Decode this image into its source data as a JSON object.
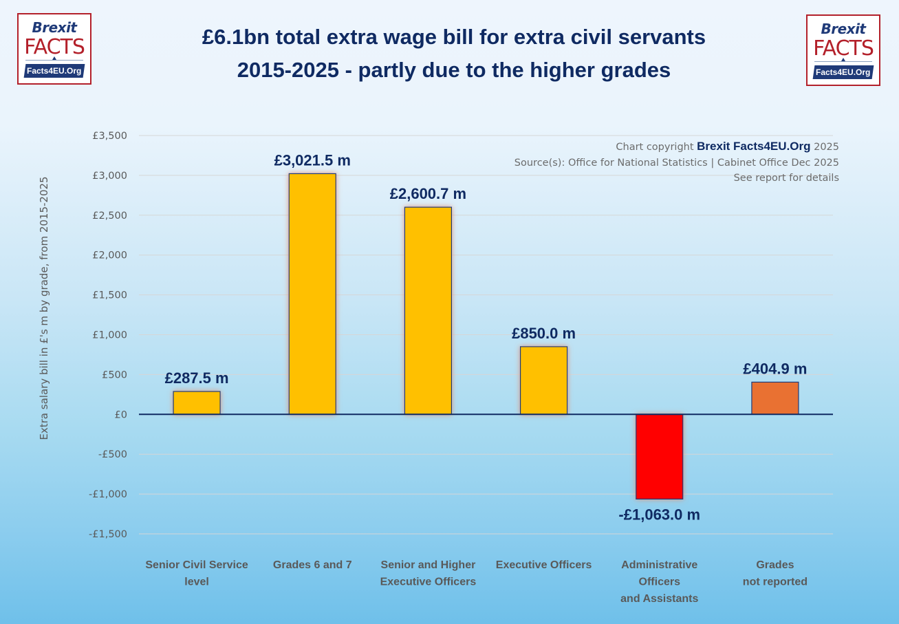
{
  "logo": {
    "brand": "Brexit",
    "word": "FACTS",
    "site": "Facts4EU.Org"
  },
  "title": {
    "line1": "£6.1bn total extra wage bill for extra civil servants",
    "line2": "2015-2025  - partly due to the higher grades"
  },
  "credits": {
    "copyright_prefix": "Chart copyright ",
    "copyright_brand": "Brexit Facts4EU.Org",
    "copyright_suffix": " 2025",
    "source": "Source(s): Office for National Statistics  |  Cabinet Office Dec 2025",
    "note": "See report for details"
  },
  "colors": {
    "title": "#0f2a62",
    "bar_default": "#ffc000",
    "bar_negative": "#ff0000",
    "bar_unreported": "#e97132",
    "bar_outline": "#1f3a78",
    "bar_glow": "#e58a6a",
    "zero_line": "#0f2a62",
    "gridline": "#d6d6d6",
    "tick_text": "#595959",
    "data_label": "#0f2a62"
  },
  "chart_data": {
    "type": "bar",
    "title": "£6.1bn total extra wage bill for extra civil servants 2015-2025 - partly due to the higher grades",
    "xlabel": "",
    "ylabel": "Extra salary bill in £'s m  by grade, from 2015-2025",
    "ylim": [
      -1500,
      3500
    ],
    "yticks": [
      3500,
      3000,
      2500,
      2000,
      1500,
      1000,
      500,
      0,
      -500,
      -1000,
      -1500
    ],
    "ytick_labels": [
      "£3,500",
      "£3,000",
      "£2,500",
      "£2,000",
      "£1,500",
      "£1,000",
      "£500",
      "£0",
      "-£500",
      "-£1,000",
      "-£1,500"
    ],
    "grid": true,
    "legend": "none",
    "categories": [
      [
        "Senior Civil Service",
        "level"
      ],
      [
        "Grades 6 and 7"
      ],
      [
        "Senior and Higher",
        "Executive Officers"
      ],
      [
        "Executive Officers"
      ],
      [
        "Administrative",
        "Officers",
        "and Assistants"
      ],
      [
        "Grades",
        "not reported"
      ]
    ],
    "values": [
      287.5,
      3021.5,
      2600.7,
      850.0,
      -1063.0,
      404.9
    ],
    "data_labels": [
      "£287.5 m",
      "£3,021.5 m",
      "£2,600.7 m",
      "£850.0 m",
      "-£1,063.0 m",
      "£404.9 m"
    ],
    "bar_colors": [
      "#ffc000",
      "#ffc000",
      "#ffc000",
      "#ffc000",
      "#ff0000",
      "#e97132"
    ]
  }
}
